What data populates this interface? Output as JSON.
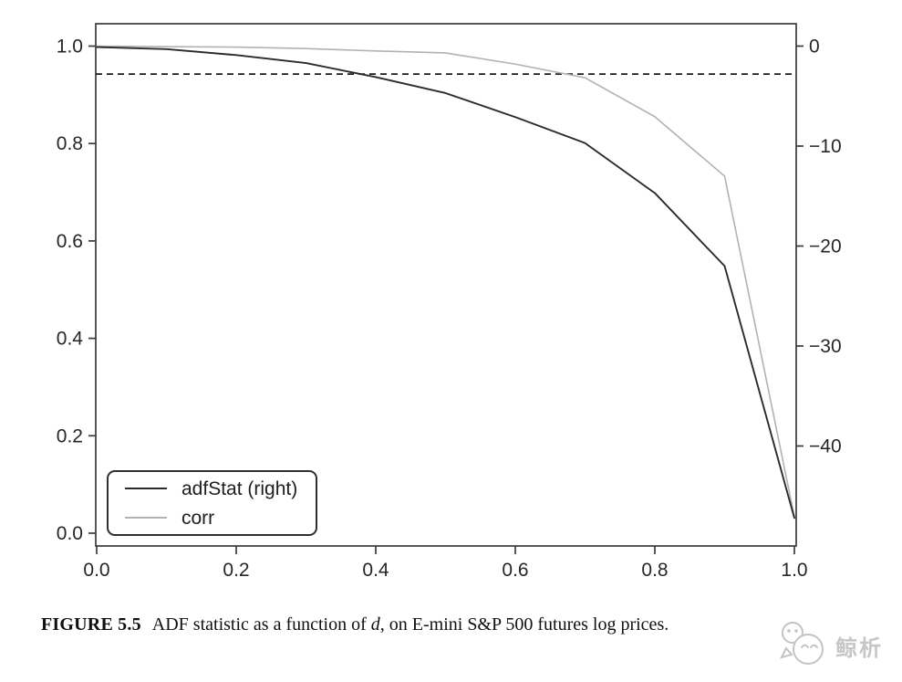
{
  "figure": {
    "caption": {
      "label": "FIGURE 5.5",
      "text_before_d": "ADF statistic as a function of ",
      "d_symbol": "d",
      "text_after_d": ", on E-mini S&P 500 futures log prices."
    },
    "watermark_text": "鲸析"
  },
  "chart_data": {
    "type": "line",
    "title": "",
    "xlabel": "",
    "ylabel_left": "",
    "ylabel_right": "",
    "grid": false,
    "legend_position": "lower left",
    "x": [
      0.0,
      0.1,
      0.2,
      0.3,
      0.4,
      0.5,
      0.6,
      0.7,
      0.8,
      0.9,
      1.0
    ],
    "series": [
      {
        "name": "adfStat",
        "legend_label": "adfStat (right)",
        "axis": "right",
        "color": "#2b2b2b",
        "stroke_width": 1.9,
        "values": [
          -0.1,
          -0.3,
          -0.9,
          -1.7,
          -3.1,
          -4.7,
          -7.1,
          -9.7,
          -14.7,
          -22.0,
          -47.2
        ]
      },
      {
        "name": "corr",
        "legend_label": "corr",
        "axis": "left",
        "color": "#b2b2b2",
        "stroke_width": 1.6,
        "values": [
          1.0,
          0.999,
          0.998,
          0.995,
          0.99,
          0.986,
          0.963,
          0.935,
          0.855,
          0.733,
          0.034
        ]
      }
    ],
    "reference_line": {
      "axis": "right",
      "value": -2.8,
      "style": "dashed",
      "color": "#1c1c1c"
    },
    "axes": {
      "x": {
        "range": [
          0.0,
          1.0
        ],
        "ticks": [
          {
            "v": 0.0,
            "label": "0.0"
          },
          {
            "v": 0.2,
            "label": "0.2"
          },
          {
            "v": 0.4,
            "label": "0.4"
          },
          {
            "v": 0.6,
            "label": "0.6"
          },
          {
            "v": 0.8,
            "label": "0.8"
          },
          {
            "v": 1.0,
            "label": "1.0"
          }
        ]
      },
      "y_left": {
        "range": [
          -0.03,
          1.046
        ],
        "ticks": [
          {
            "v": 1.0,
            "label": "1.0"
          },
          {
            "v": 0.8,
            "label": "0.8"
          },
          {
            "v": 0.6,
            "label": "0.6"
          },
          {
            "v": 0.4,
            "label": "0.4"
          },
          {
            "v": 0.2,
            "label": "0.2"
          },
          {
            "v": 0.0,
            "label": "0.0"
          }
        ]
      },
      "y_right": {
        "range": [
          -50.0,
          2.2
        ],
        "ticks": [
          {
            "v": 0,
            "label": "0"
          },
          {
            "v": -10,
            "label": "−10"
          },
          {
            "v": -20,
            "label": "−20"
          },
          {
            "v": -30,
            "label": "−30"
          },
          {
            "v": -40,
            "label": "−40"
          }
        ]
      }
    },
    "frame_color": "#3a3a3a"
  }
}
